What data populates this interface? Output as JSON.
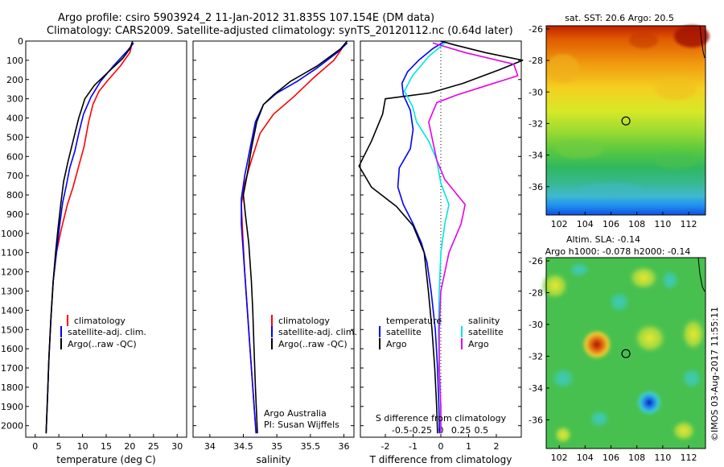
{
  "header": {
    "line1": "Argo profile: csiro 5903924_2 11-Jan-2012 31.835S 107.154E (DM data)",
    "line2": "Climatology: CARS2009. Satellite-adjusted climatology: synTS_20120112.nc (0.64d later)"
  },
  "depth_ticks": [
    0,
    100,
    200,
    300,
    400,
    500,
    600,
    700,
    800,
    900,
    1000,
    1100,
    1200,
    1300,
    1400,
    1500,
    1600,
    1700,
    1800,
    1900,
    2000
  ],
  "temp_panel": {
    "xlabel": "temperature (deg C)",
    "xticks": [
      "0",
      "5",
      "10",
      "15",
      "20",
      "25",
      "30"
    ],
    "legend": [
      "climatology",
      "satellite-adj. clim.",
      "Argo(..raw -QC)"
    ]
  },
  "sal_panel": {
    "xlabel": "salinity",
    "xticks": [
      "34",
      "34.5",
      "35",
      "35.5",
      "36"
    ],
    "legend": [
      "climatology",
      "satellite-adj. clim.",
      "Argo(..raw -QC)"
    ],
    "note1": "Argo Australia",
    "note2": "PI: Susan Wijffels"
  },
  "diff_panel": {
    "top_label": "S difference from climatology",
    "s_ticks": [
      "-0.5",
      "-0.25",
      "0",
      "0.25",
      "0.5"
    ],
    "t_ticks": [
      "-2",
      "-1",
      "0",
      "1",
      "2"
    ],
    "xlabel": "T difference from climatology",
    "legend_temp_title": "temperature",
    "legend_sal_title": "salinity",
    "legend_sat": "satellite",
    "legend_argo": "Argo"
  },
  "sst_map": {
    "title": "sat. SST: 20.6  Argo: 20.5",
    "yticks": [
      "-26",
      "-28",
      "-30",
      "-32",
      "-34",
      "-36"
    ],
    "xticks": [
      "102",
      "104",
      "106",
      "108",
      "110",
      "112"
    ]
  },
  "sla_map": {
    "title1": "Altim. SLA: -0.14",
    "title2": "Argo h1000: -0.078  h2000: -0.14",
    "yticks": [
      "-26",
      "-28",
      "-30",
      "-32",
      "-34",
      "-36"
    ],
    "xticks": [
      "102",
      "104",
      "106",
      "108",
      "110",
      "112"
    ]
  },
  "watermark": "©IMOS 03-Aug-2017 11:55:11",
  "colors": {
    "climatology": "#ff0000",
    "satellite": "#0000ff",
    "argo": "#000000",
    "sat_sal": "#00e5e5",
    "argo_sal": "#e600e6"
  },
  "chart_data": [
    {
      "type": "line",
      "title": "",
      "xlabel": "temperature (deg C)",
      "ylabel": "",
      "xlim": [
        -2,
        32
      ],
      "ylim": [
        2060,
        0
      ],
      "series": [
        {
          "name": "climatology",
          "color": "#ff0000",
          "points": [
            [
              20.5,
              10
            ],
            [
              20,
              60
            ],
            [
              18,
              130
            ],
            [
              15.5,
              200
            ],
            [
              13.5,
              260
            ],
            [
              12.2,
              330
            ],
            [
              11.3,
              420
            ],
            [
              10.3,
              550
            ],
            [
              9.2,
              650
            ],
            [
              8,
              760
            ],
            [
              6.8,
              850
            ],
            [
              5.5,
              980
            ],
            [
              4.5,
              1100
            ],
            [
              3.8,
              1250
            ],
            [
              3.3,
              1450
            ],
            [
              2.9,
              1650
            ],
            [
              2.6,
              1850
            ],
            [
              2.3,
              2040
            ]
          ]
        },
        {
          "name": "satellite-adj. clim.",
          "color": "#0000ff",
          "points": [
            [
              20.8,
              10
            ],
            [
              19.5,
              50
            ],
            [
              16.5,
              130
            ],
            [
              13.8,
              210
            ],
            [
              11.8,
              290
            ],
            [
              10.2,
              380
            ],
            [
              9.2,
              480
            ],
            [
              8.4,
              570
            ],
            [
              7.3,
              660
            ],
            [
              6.5,
              760
            ],
            [
              5.8,
              840
            ],
            [
              5.2,
              950
            ],
            [
              4.5,
              1100
            ],
            [
              3.8,
              1250
            ],
            [
              3.3,
              1450
            ],
            [
              2.9,
              1650
            ],
            [
              2.6,
              1850
            ],
            [
              2.3,
              2040
            ]
          ]
        },
        {
          "name": "Argo(..raw -QC)",
          "color": "#000000",
          "points": [
            [
              20.6,
              0
            ],
            [
              20,
              40
            ],
            [
              18.5,
              90
            ],
            [
              15.5,
              160
            ],
            [
              12.5,
              230
            ],
            [
              10.5,
              300
            ],
            [
              9.2,
              400
            ],
            [
              8,
              520
            ],
            [
              7,
              620
            ],
            [
              6,
              730
            ],
            [
              5.4,
              850
            ],
            [
              4.8,
              980
            ],
            [
              4.3,
              1100
            ],
            [
              3.8,
              1250
            ],
            [
              3.3,
              1450
            ],
            [
              2.9,
              1650
            ],
            [
              2.6,
              1850
            ],
            [
              2.3,
              2040
            ]
          ]
        }
      ]
    },
    {
      "type": "line",
      "title": "",
      "xlabel": "salinity",
      "ylabel": "",
      "xlim": [
        33.75,
        36.15
      ],
      "ylim": [
        2060,
        0
      ],
      "series": [
        {
          "name": "climatology",
          "color": "#ff0000",
          "points": [
            [
              36.02,
              10
            ],
            [
              35.95,
              50
            ],
            [
              35.85,
              100
            ],
            [
              35.55,
              190
            ],
            [
              35.25,
              290
            ],
            [
              34.95,
              380
            ],
            [
              34.75,
              480
            ],
            [
              34.62,
              620
            ],
            [
              34.52,
              740
            ],
            [
              34.47,
              850
            ],
            [
              34.49,
              1000
            ],
            [
              34.52,
              1200
            ],
            [
              34.56,
              1400
            ],
            [
              34.6,
              1600
            ],
            [
              34.64,
              1800
            ],
            [
              34.69,
              2040
            ]
          ]
        },
        {
          "name": "satellite-adj. clim.",
          "color": "#0000ff",
          "points": [
            [
              36.05,
              10
            ],
            [
              35.9,
              60
            ],
            [
              35.6,
              140
            ],
            [
              35.3,
              210
            ],
            [
              35,
              270
            ],
            [
              34.8,
              330
            ],
            [
              34.68,
              420
            ],
            [
              34.6,
              560
            ],
            [
              34.52,
              700
            ],
            [
              34.47,
              820
            ],
            [
              34.47,
              950
            ],
            [
              34.51,
              1150
            ],
            [
              34.56,
              1400
            ],
            [
              34.6,
              1600
            ],
            [
              34.64,
              1800
            ],
            [
              34.69,
              2040
            ]
          ]
        },
        {
          "name": "Argo(..raw -QC)",
          "color": "#000000",
          "points": [
            [
              36.05,
              0
            ],
            [
              35.95,
              40
            ],
            [
              35.6,
              130
            ],
            [
              35.2,
              210
            ],
            [
              34.95,
              280
            ],
            [
              34.8,
              330
            ],
            [
              34.7,
              420
            ],
            [
              34.62,
              560
            ],
            [
              34.56,
              690
            ],
            [
              34.5,
              800
            ],
            [
              34.53,
              900
            ],
            [
              34.58,
              1050
            ],
            [
              34.62,
              1250
            ],
            [
              34.64,
              1400
            ],
            [
              34.66,
              1600
            ],
            [
              34.68,
              1800
            ],
            [
              34.71,
              2040
            ]
          ]
        }
      ]
    },
    {
      "type": "line",
      "title": "",
      "xlabel": "T difference from climatology",
      "ylabel": "",
      "xlim": [
        -2.9,
        2.9
      ],
      "ylim": [
        2060,
        0
      ],
      "series": [
        {
          "name": "temperature satellite",
          "color": "#0000ff",
          "points": [
            [
              0.1,
              5
            ],
            [
              -0.3,
              40
            ],
            [
              -0.8,
              100
            ],
            [
              -1.2,
              160
            ],
            [
              -1.4,
              220
            ],
            [
              -1.35,
              280
            ],
            [
              -1.1,
              360
            ],
            [
              -1.0,
              460
            ],
            [
              -1.1,
              560
            ],
            [
              -1.5,
              660
            ],
            [
              -1.55,
              760
            ],
            [
              -1.35,
              850
            ],
            [
              -1.0,
              950
            ],
            [
              -0.7,
              1050
            ],
            [
              -0.5,
              1150
            ],
            [
              -0.35,
              1300
            ],
            [
              -0.2,
              1500
            ],
            [
              -0.12,
              1700
            ],
            [
              -0.07,
              1900
            ],
            [
              -0.05,
              2040
            ]
          ]
        },
        {
          "name": "temperature Argo",
          "color": "#000000",
          "points": [
            [
              0,
              0
            ],
            [
              0.5,
              20
            ],
            [
              1.6,
              60
            ],
            [
              2.95,
              100
            ],
            [
              2.1,
              150
            ],
            [
              0.8,
              220
            ],
            [
              -0.4,
              270
            ],
            [
              -2.0,
              300
            ],
            [
              -2.1,
              380
            ],
            [
              -2.5,
              520
            ],
            [
              -2.95,
              650
            ],
            [
              -2.5,
              760
            ],
            [
              -1.6,
              860
            ],
            [
              -1.0,
              960
            ],
            [
              -0.6,
              1100
            ],
            [
              -0.45,
              1300
            ],
            [
              -0.32,
              1500
            ],
            [
              -0.22,
              1700
            ],
            [
              -0.15,
              1900
            ],
            [
              -0.12,
              2040
            ]
          ]
        },
        {
          "name": "salinity satellite",
          "color": "#00e5e5",
          "points": [
            [
              0.05,
              10
            ],
            [
              -0.15,
              80
            ],
            [
              -0.35,
              180
            ],
            [
              -0.45,
              260
            ],
            [
              -0.35,
              340
            ],
            [
              -0.3,
              420
            ],
            [
              -0.15,
              520
            ],
            [
              -0.05,
              620
            ],
            [
              0,
              740
            ],
            [
              0.1,
              850
            ],
            [
              0.05,
              950
            ],
            [
              0,
              1100
            ],
            [
              -0.02,
              1300
            ],
            [
              -0.03,
              1500
            ],
            [
              -0.02,
              1700
            ],
            [
              0,
              1900
            ],
            [
              0,
              2040
            ]
          ]
        },
        {
          "name": "salinity Argo",
          "color": "#e600e6",
          "points": [
            [
              -0.1,
              10
            ],
            [
              0.3,
              60
            ],
            [
              0.9,
              120
            ],
            [
              0.95,
              180
            ],
            [
              0.5,
              240
            ],
            [
              0.2,
              280
            ],
            [
              -0.05,
              320
            ],
            [
              -0.15,
              420
            ],
            [
              -0.1,
              520
            ],
            [
              -0.05,
              620
            ],
            [
              0.05,
              720
            ],
            [
              0.3,
              850
            ],
            [
              0.25,
              950
            ],
            [
              0.1,
              1100
            ],
            [
              0,
              1300
            ],
            [
              -0.02,
              1500
            ],
            [
              -0.02,
              1700
            ],
            [
              0,
              1900
            ],
            [
              0,
              2040
            ]
          ]
        }
      ]
    },
    {
      "type": "heatmap",
      "title": "sat. SST: 20.6  Argo: 20.5",
      "xlim": [
        101,
        113.3
      ],
      "ylim": [
        -37.8,
        -25.8
      ],
      "marker": {
        "lon": 107.154,
        "lat": -31.835
      }
    },
    {
      "type": "heatmap",
      "title": "Altim. SLA: -0.14",
      "xlim": [
        101,
        113.3
      ],
      "ylim": [
        -37.8,
        -25.8
      ],
      "marker": {
        "lon": 107.154,
        "lat": -31.835
      }
    }
  ]
}
